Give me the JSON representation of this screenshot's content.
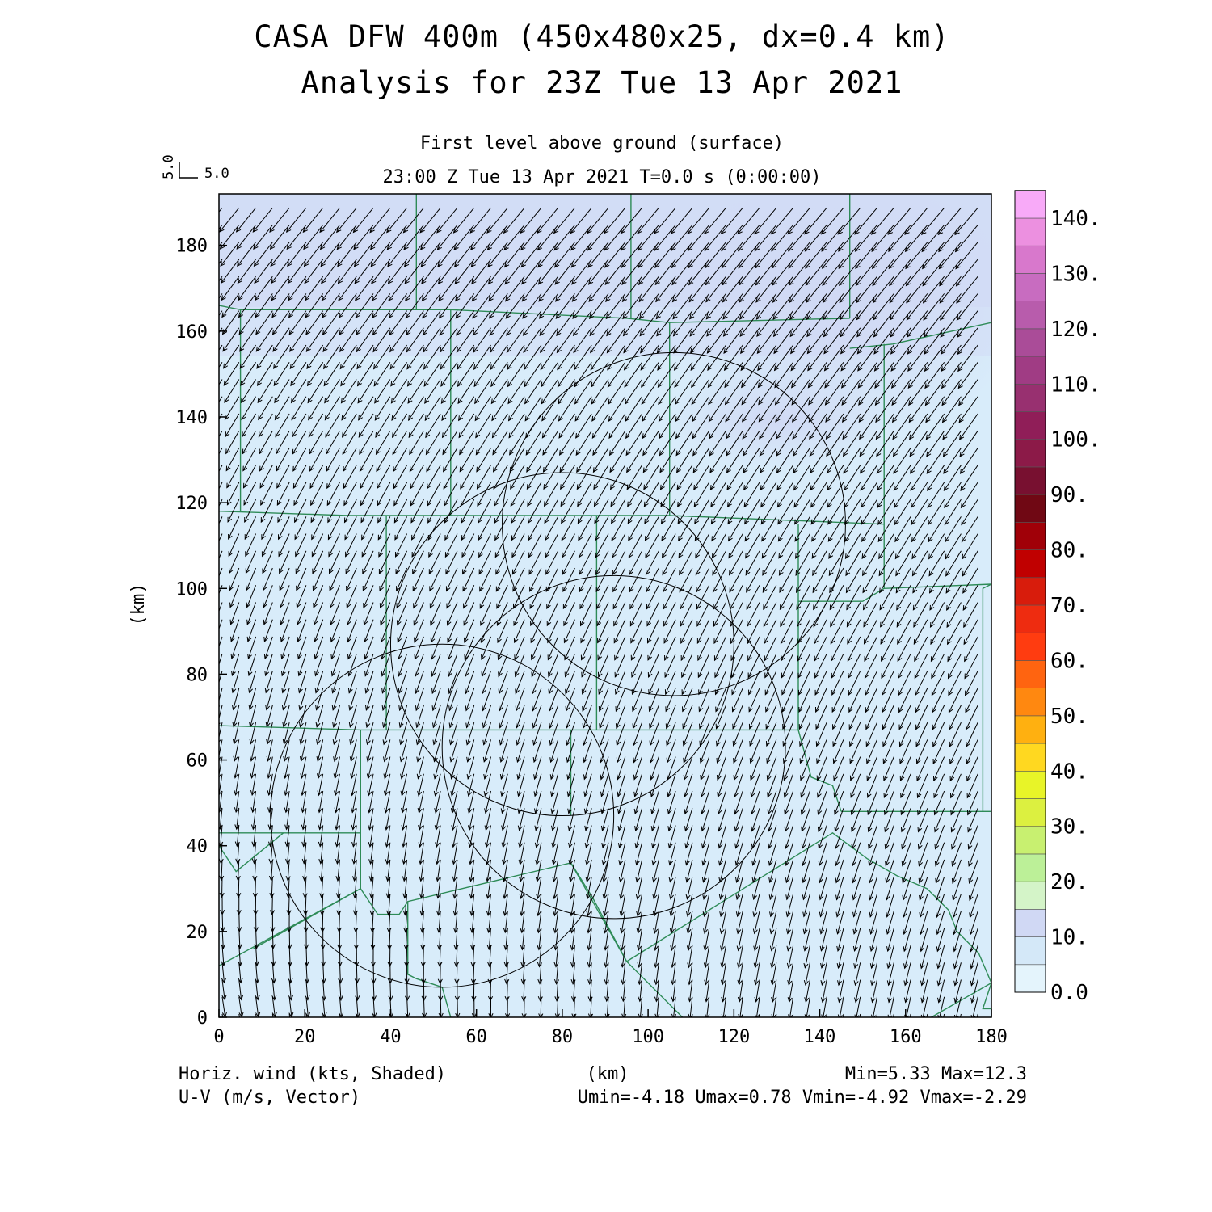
{
  "title": {
    "line1": "CASA DFW 400m (450x480x25, dx=0.4 km)",
    "line2": "Analysis for 23Z Tue 13 Apr 2021"
  },
  "subtitle": {
    "level": "First level above ground (surface)",
    "time": "23:00 Z Tue 13 Apr 2021    T=0.0 s (0:00:00)"
  },
  "vector_key": {
    "u_ref": "5.0",
    "v_ref": "5.0"
  },
  "footer": {
    "left1": "Horiz. wind (kts, Shaded)",
    "left2": "U-V (m/s, Vector)",
    "right1": "Min=5.33 Max=12.3",
    "right2": "Umin=-4.18 Umax=0.78 Vmin=-4.92 Vmax=-2.29"
  },
  "chart_data": {
    "type": "heatmap",
    "xlabel": "(km)",
    "ylabel": "(km)",
    "xlim": [
      0,
      180
    ],
    "ylim": [
      0,
      192
    ],
    "xticks": [
      0,
      20,
      40,
      60,
      80,
      100,
      120,
      140,
      160,
      180
    ],
    "yticks": [
      0,
      20,
      40,
      60,
      80,
      100,
      120,
      140,
      160,
      180
    ],
    "shaded_field": "Horiz. wind (kts)",
    "colorbar": {
      "levels": [
        0,
        5,
        10,
        15,
        20,
        25,
        30,
        35,
        40,
        45,
        50,
        55,
        60,
        65,
        70,
        75,
        80,
        85,
        90,
        95,
        100,
        105,
        110,
        115,
        120,
        125,
        130,
        135,
        140
      ],
      "labels": [
        "0.0",
        "10.",
        "20.",
        "30.",
        "40.",
        "50.",
        "60.",
        "70.",
        "80.",
        "90.",
        "100.",
        "110.",
        "120.",
        "130.",
        "140."
      ],
      "colors": [
        "#e4f4fc",
        "#d4e8f8",
        "#d0d8f4",
        "#d4f4c8",
        "#bcf098",
        "#c8f070",
        "#dcf040",
        "#e8f428",
        "#ffd820",
        "#ffb010",
        "#ff8810",
        "#ff6410",
        "#ff3c10",
        "#ee2c10",
        "#d81c0c",
        "#c00000",
        "#a00008",
        "#700814",
        "#781030",
        "#8c1a48",
        "#901e58",
        "#983070",
        "#a03c84",
        "#aa4c98",
        "#b85cac",
        "#c86cc0",
        "#d878cc",
        "#ec90e0",
        "#f8aaf8"
      ]
    },
    "speed_range_kts": [
      5.33,
      12.3
    ],
    "vector_field": {
      "units": "m/s",
      "u_range": [
        -4.18,
        0.78
      ],
      "v_range": [
        -4.92,
        -2.29
      ],
      "ref_vector": 5.0
    },
    "range_rings": [
      {
        "center": [
          52,
          47
        ],
        "radius": 40
      },
      {
        "center": [
          92,
          63
        ],
        "radius": 40
      },
      {
        "center": [
          106,
          115
        ],
        "radius": 40
      },
      {
        "center": [
          80,
          87
        ],
        "radius": 40
      }
    ],
    "county_borders": [
      [
        [
          0,
          166
        ],
        [
          5,
          165
        ],
        [
          46,
          165
        ],
        [
          54,
          165
        ],
        [
          95,
          163
        ],
        [
          105,
          162
        ],
        [
          147,
          163
        ]
      ],
      [
        [
          46,
          192
        ],
        [
          46,
          165
        ]
      ],
      [
        [
          96,
          192
        ],
        [
          96,
          163
        ]
      ],
      [
        [
          147,
          192
        ],
        [
          147,
          163
        ]
      ],
      [
        [
          147,
          156
        ],
        [
          157,
          157
        ]
      ],
      [
        [
          157,
          157
        ],
        [
          180,
          162
        ]
      ],
      [
        [
          5,
          165
        ],
        [
          5,
          118
        ]
      ],
      [
        [
          54,
          165
        ],
        [
          54,
          117
        ]
      ],
      [
        [
          105,
          162
        ],
        [
          105,
          117
        ]
      ],
      [
        [
          0,
          118
        ],
        [
          30,
          117
        ],
        [
          54,
          117
        ],
        [
          105,
          117
        ],
        [
          155,
          115
        ]
      ],
      [
        [
          155,
          157
        ],
        [
          155,
          100
        ],
        [
          180,
          101
        ]
      ],
      [
        [
          155,
          100
        ],
        [
          150,
          97
        ],
        [
          135,
          97
        ]
      ],
      [
        [
          135,
          115
        ],
        [
          135,
          67
        ]
      ],
      [
        [
          39,
          117
        ],
        [
          39,
          67
        ]
      ],
      [
        [
          88,
          117
        ],
        [
          88,
          67
        ]
      ],
      [
        [
          0,
          68
        ],
        [
          33,
          67
        ],
        [
          39,
          67
        ],
        [
          88,
          67
        ],
        [
          135,
          67
        ]
      ],
      [
        [
          33,
          67
        ],
        [
          33,
          43
        ],
        [
          33,
          30
        ]
      ],
      [
        [
          82,
          67
        ],
        [
          82,
          47
        ]
      ],
      [
        [
          0,
          43
        ],
        [
          15,
          43
        ],
        [
          33,
          43
        ]
      ],
      [
        [
          0,
          40
        ],
        [
          4,
          34
        ],
        [
          15,
          43
        ]
      ],
      [
        [
          0,
          12
        ],
        [
          33,
          30
        ],
        [
          37,
          24
        ],
        [
          42,
          24
        ],
        [
          44,
          27
        ],
        [
          82,
          36
        ],
        [
          95,
          13
        ],
        [
          108,
          0
        ]
      ],
      [
        [
          82,
          36
        ],
        [
          87,
          28
        ],
        [
          95,
          13
        ]
      ],
      [
        [
          8,
          16
        ],
        [
          33,
          30
        ]
      ],
      [
        [
          44,
          27
        ],
        [
          44,
          10
        ],
        [
          46,
          9
        ],
        [
          52,
          7
        ],
        [
          54,
          0
        ]
      ],
      [
        [
          135,
          67
        ],
        [
          138,
          56
        ],
        [
          143,
          54
        ],
        [
          145,
          48
        ]
      ],
      [
        [
          145,
          48
        ],
        [
          163,
          48
        ],
        [
          178,
          48
        ],
        [
          178,
          100
        ],
        [
          180,
          101
        ]
      ],
      [
        [
          178,
          48
        ],
        [
          180,
          48
        ]
      ],
      [
        [
          95,
          13
        ],
        [
          143,
          43
        ],
        [
          151,
          37
        ],
        [
          158,
          33
        ],
        [
          165,
          30
        ],
        [
          170,
          25
        ],
        [
          172,
          20
        ],
        [
          177,
          15
        ],
        [
          180,
          8
        ],
        [
          178,
          2
        ],
        [
          180,
          2
        ]
      ],
      [
        [
          166,
          0
        ],
        [
          180,
          8
        ]
      ]
    ]
  }
}
